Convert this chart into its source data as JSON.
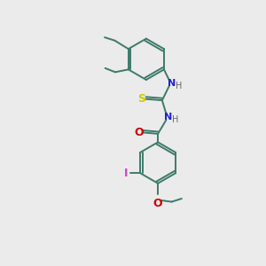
{
  "bg_color": "#ebebeb",
  "bond_color": "#3d7a6a",
  "label_colors": {
    "S": "#cccc00",
    "N": "#2222cc",
    "H": "#666666",
    "O": "#cc0000",
    "I": "#cc44cc",
    "C": "#3d7a6a"
  }
}
